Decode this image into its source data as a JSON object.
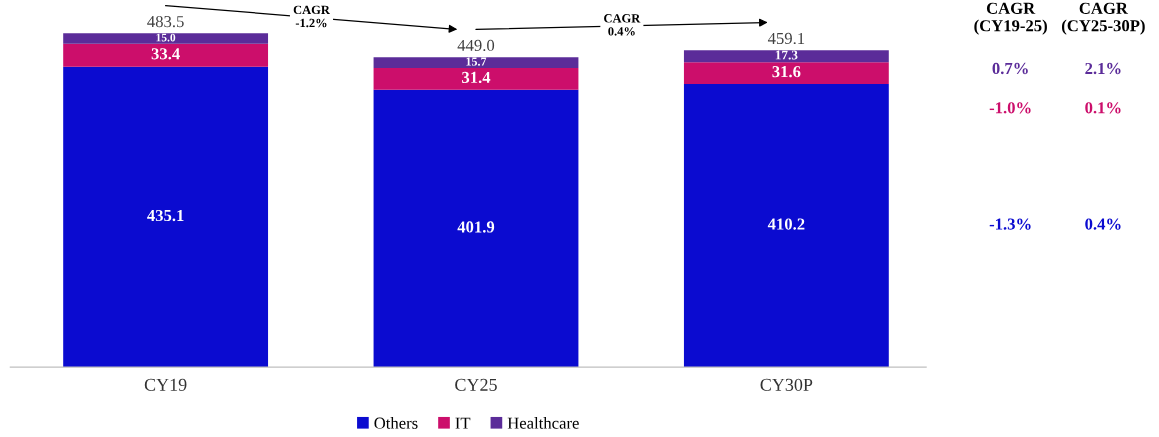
{
  "chart_data": {
    "type": "bar",
    "stacked": true,
    "categories": [
      "CY19",
      "CY25",
      "CY30P"
    ],
    "series": [
      {
        "name": "Others",
        "color": "#0b0bd0",
        "values": [
          435.1,
          401.9,
          410.2
        ],
        "value_labels": [
          "435.1",
          "401.9",
          "410.2"
        ]
      },
      {
        "name": "IT",
        "color": "#cc0e6b",
        "values": [
          33.4,
          31.4,
          31.6
        ],
        "value_labels": [
          "33.4",
          "31.4",
          "31.6"
        ]
      },
      {
        "name": "Healthcare",
        "color": "#5b2c99",
        "values": [
          15.0,
          15.7,
          17.3
        ],
        "value_labels": [
          "15.0",
          "15.7",
          "17.3"
        ]
      }
    ],
    "totals": [
      "483.5",
      "449.0",
      "459.1"
    ],
    "legend": "bottom",
    "tick_labels": "x",
    "annotations": [
      "CAGR\n-1.2%",
      "CAGR\n0.4%",
      "CAGR\n(CY19-25)",
      "CAGR\n(CY25-30P)",
      "0.7%",
      "2.1%",
      "-1.0%",
      "0.1%",
      "-1.3%",
      "0.4%"
    ]
  }
}
